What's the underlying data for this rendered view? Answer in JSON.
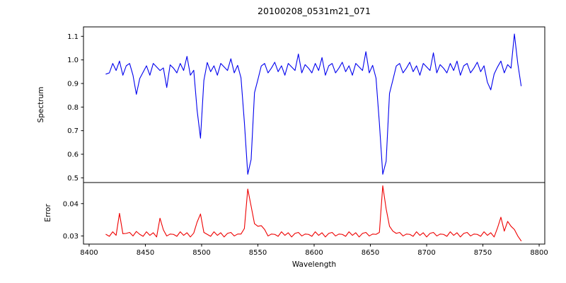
{
  "figure": {
    "background": "#ffffff",
    "axis_color": "#000000"
  },
  "chart_data": {
    "type": "line",
    "title": "20100208_0531m21_071",
    "xlabel": "Wavelength",
    "xlim": [
      8395,
      8805
    ],
    "xticks": [
      8400,
      8450,
      8500,
      8550,
      8600,
      8650,
      8700,
      8750,
      8800
    ],
    "xticklabels": [
      "8400",
      "8450",
      "8500",
      "8550",
      "8600",
      "8650",
      "8700",
      "8750",
      "8800"
    ],
    "grid": false,
    "legend": "none",
    "notable_features": {
      "absorption_line_centers_approx": [
        8443,
        8498,
        8542,
        8662
      ],
      "error_peak_centers_approx": [
        8428,
        8464,
        8498,
        8542,
        8662,
        8765
      ]
    },
    "x": [
      8415,
      8418,
      8421,
      8424,
      8427,
      8430,
      8433,
      8436,
      8439,
      8442,
      8445,
      8448,
      8451,
      8454,
      8457,
      8460,
      8463,
      8466,
      8469,
      8472,
      8475,
      8478,
      8481,
      8484,
      8487,
      8490,
      8493,
      8496,
      8499,
      8502,
      8505,
      8508,
      8511,
      8514,
      8517,
      8520,
      8523,
      8526,
      8529,
      8532,
      8535,
      8538,
      8541,
      8544,
      8547,
      8550,
      8553,
      8556,
      8559,
      8562,
      8565,
      8568,
      8571,
      8574,
      8577,
      8580,
      8583,
      8586,
      8589,
      8592,
      8595,
      8598,
      8601,
      8604,
      8607,
      8610,
      8613,
      8616,
      8619,
      8622,
      8625,
      8628,
      8631,
      8634,
      8637,
      8640,
      8643,
      8646,
      8649,
      8652,
      8655,
      8658,
      8661,
      8664,
      8667,
      8670,
      8673,
      8676,
      8679,
      8682,
      8685,
      8688,
      8691,
      8694,
      8697,
      8700,
      8703,
      8706,
      8709,
      8712,
      8715,
      8718,
      8721,
      8724,
      8727,
      8730,
      8733,
      8736,
      8739,
      8742,
      8745,
      8748,
      8751,
      8754,
      8757,
      8760,
      8763,
      8766,
      8769,
      8772,
      8775,
      8778,
      8781,
      8784
    ],
    "panels": [
      {
        "ylabel": "Spectrum",
        "color": "#0000ee",
        "ylim": [
          0.48,
          1.14
        ],
        "yticks": [
          0.5,
          0.6,
          0.7,
          0.8,
          0.9,
          1.0,
          1.1
        ],
        "yticklabels": [
          "0.5",
          "0.6",
          "0.7",
          "0.8",
          "0.9",
          "1.0",
          "1.1"
        ],
        "values": [
          0.94,
          0.945,
          0.985,
          0.955,
          0.995,
          0.935,
          0.975,
          0.985,
          0.935,
          0.854,
          0.921,
          0.948,
          0.975,
          0.935,
          0.985,
          0.97,
          0.955,
          0.966,
          0.883,
          0.979,
          0.965,
          0.945,
          0.985,
          0.955,
          1.015,
          0.935,
          0.956,
          0.786,
          0.668,
          0.913,
          0.989,
          0.95,
          0.975,
          0.935,
          0.985,
          0.97,
          0.955,
          1.005,
          0.945,
          0.977,
          0.924,
          0.736,
          0.515,
          0.578,
          0.861,
          0.916,
          0.974,
          0.985,
          0.945,
          0.965,
          0.99,
          0.95,
          0.975,
          0.935,
          0.985,
          0.97,
          0.955,
          1.025,
          0.945,
          0.98,
          0.965,
          0.945,
          0.985,
          0.955,
          1.01,
          0.935,
          0.975,
          0.985,
          0.945,
          0.965,
          0.99,
          0.95,
          0.975,
          0.935,
          0.985,
          0.97,
          0.955,
          1.035,
          0.945,
          0.977,
          0.923,
          0.732,
          0.515,
          0.57,
          0.858,
          0.915,
          0.974,
          0.985,
          0.945,
          0.965,
          0.99,
          0.95,
          0.975,
          0.935,
          0.985,
          0.97,
          0.955,
          1.03,
          0.945,
          0.98,
          0.965,
          0.945,
          0.985,
          0.955,
          0.995,
          0.935,
          0.975,
          0.985,
          0.945,
          0.965,
          0.99,
          0.95,
          0.975,
          0.905,
          0.873,
          0.94,
          0.97,
          0.995,
          0.945,
          0.98,
          0.965,
          1.11,
          0.985,
          0.89
        ]
      },
      {
        "ylabel": "Error",
        "color": "#ee0000",
        "ylim": [
          0.0275,
          0.0465
        ],
        "yticks": [
          0.03,
          0.04
        ],
        "yticklabels": [
          "0.03",
          "0.04"
        ],
        "values": [
          0.0305,
          0.0299,
          0.0313,
          0.0302,
          0.037,
          0.0307,
          0.0308,
          0.0311,
          0.03,
          0.0314,
          0.0305,
          0.0299,
          0.0313,
          0.0302,
          0.031,
          0.0297,
          0.0355,
          0.0319,
          0.03,
          0.0306,
          0.0305,
          0.0299,
          0.0313,
          0.0302,
          0.031,
          0.0297,
          0.0309,
          0.0343,
          0.0368,
          0.0311,
          0.0305,
          0.0299,
          0.0313,
          0.0302,
          0.031,
          0.0297,
          0.0308,
          0.0311,
          0.03,
          0.0306,
          0.0306,
          0.0323,
          0.0445,
          0.0392,
          0.0338,
          0.033,
          0.0332,
          0.032,
          0.03,
          0.0306,
          0.0305,
          0.0299,
          0.0313,
          0.0302,
          0.031,
          0.0297,
          0.0308,
          0.0311,
          0.03,
          0.0306,
          0.0305,
          0.0299,
          0.0313,
          0.0302,
          0.031,
          0.0297,
          0.0308,
          0.0311,
          0.03,
          0.0306,
          0.0305,
          0.0299,
          0.0313,
          0.0302,
          0.031,
          0.0297,
          0.0308,
          0.0311,
          0.03,
          0.0306,
          0.0305,
          0.0311,
          0.0455,
          0.0384,
          0.033,
          0.0315,
          0.0308,
          0.0311,
          0.03,
          0.0306,
          0.0305,
          0.0299,
          0.0313,
          0.0302,
          0.031,
          0.0297,
          0.0308,
          0.0311,
          0.03,
          0.0306,
          0.0305,
          0.0299,
          0.0313,
          0.0302,
          0.031,
          0.0297,
          0.0308,
          0.0311,
          0.03,
          0.0306,
          0.0305,
          0.0299,
          0.0313,
          0.0302,
          0.031,
          0.0297,
          0.0325,
          0.0358,
          0.0315,
          0.0345,
          0.033,
          0.032,
          0.03,
          0.0285
        ]
      }
    ]
  }
}
